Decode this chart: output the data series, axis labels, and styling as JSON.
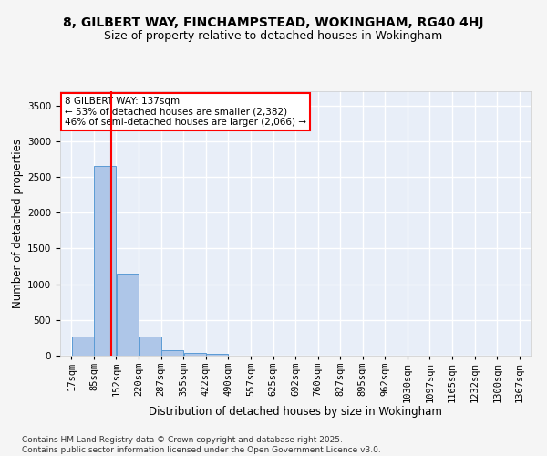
{
  "title": "8, GILBERT WAY, FINCHAMPSTEAD, WOKINGHAM, RG40 4HJ",
  "subtitle": "Size of property relative to detached houses in Wokingham",
  "xlabel": "Distribution of detached houses by size in Wokingham",
  "ylabel": "Number of detached properties",
  "bar_color": "#aec6e8",
  "bar_edge_color": "#5b9bd5",
  "red_line_x": 137,
  "annotation_text": "8 GILBERT WAY: 137sqm\n← 53% of detached houses are smaller (2,382)\n46% of semi-detached houses are larger (2,066) →",
  "annotation_box_color": "white",
  "annotation_box_edge_color": "red",
  "bin_edges": [
    17,
    85,
    152,
    220,
    287,
    355,
    422,
    490,
    557,
    625,
    692,
    760,
    827,
    895,
    962,
    1030,
    1097,
    1165,
    1232,
    1300,
    1367
  ],
  "bin_heights": [
    270,
    2650,
    1150,
    270,
    75,
    40,
    20,
    5,
    5,
    3,
    2,
    2,
    1,
    1,
    0,
    0,
    0,
    0,
    0,
    0
  ],
  "ylim": [
    0,
    3700
  ],
  "yticks": [
    0,
    500,
    1000,
    1500,
    2000,
    2500,
    3000,
    3500
  ],
  "background_color": "#e8eef8",
  "grid_color": "white",
  "footer_text": "Contains HM Land Registry data © Crown copyright and database right 2025.\nContains public sector information licensed under the Open Government Licence v3.0.",
  "title_fontsize": 10,
  "subtitle_fontsize": 9,
  "xlabel_fontsize": 8.5,
  "ylabel_fontsize": 8.5,
  "tick_fontsize": 7.5,
  "footer_fontsize": 6.5,
  "fig_bg_color": "#f5f5f5"
}
